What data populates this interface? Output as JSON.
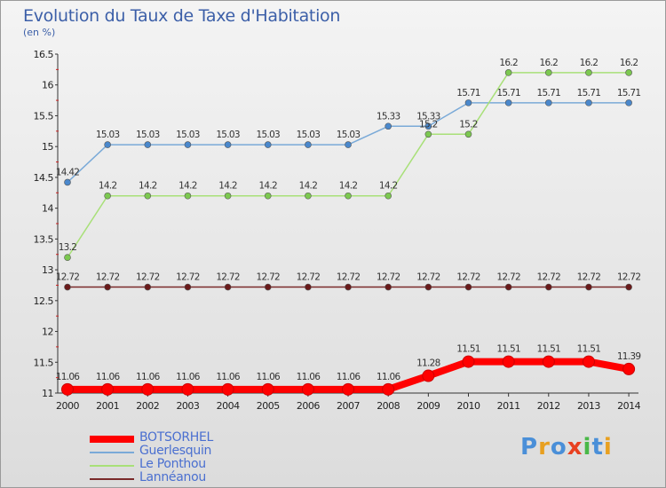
{
  "title": "Evolution du Taux de Taxe d'Habitation",
  "subtitle": "(en %)",
  "logo": {
    "text": "Proxiti",
    "letters": [
      "P",
      "r",
      "o",
      "x",
      "i",
      "t",
      "i"
    ],
    "colors": [
      "#4a8fd8",
      "#e8a020",
      "#4a8fd8",
      "#e84020",
      "#4ab848",
      "#4a8fd8",
      "#e8a020"
    ]
  },
  "chart_data": {
    "type": "line",
    "title": "Evolution du Taux de Taxe d'Habitation",
    "ylabel": "(en %)",
    "xlabel": "",
    "categories": [
      "2000",
      "2001",
      "2002",
      "2003",
      "2004",
      "2005",
      "2006",
      "2007",
      "2008",
      "2009",
      "2010",
      "2011",
      "2012",
      "2013",
      "2014"
    ],
    "ylim": [
      11,
      16.5
    ],
    "yticks": [
      "11",
      "11.5",
      "12",
      "12.5",
      "13",
      "13.5",
      "14",
      "14.5",
      "15",
      "15.5",
      "16",
      "16.5"
    ],
    "grid": false,
    "legend_position": "bottom-left",
    "series": [
      {
        "name": "BOTSORHEL",
        "color": "#ff0000",
        "marker": "#ff0000",
        "values": [
          11.06,
          11.06,
          11.06,
          11.06,
          11.06,
          11.06,
          11.06,
          11.06,
          11.06,
          11.28,
          11.51,
          11.51,
          11.51,
          11.51,
          11.39
        ],
        "labels": [
          "11.06",
          "11.06",
          "11.06",
          "11.06",
          "11.06",
          "11.06",
          "11.06",
          "11.06",
          "11.06",
          "11.28",
          "11.51",
          "11.51",
          "11.51",
          "11.51",
          "11.39"
        ]
      },
      {
        "name": "Guerlesquin",
        "color": "#7aaad8",
        "marker": "#4a88cc",
        "values": [
          14.42,
          15.03,
          15.03,
          15.03,
          15.03,
          15.03,
          15.03,
          15.03,
          15.33,
          15.33,
          15.71,
          15.71,
          15.71,
          15.71,
          15.71
        ],
        "labels": [
          "14.42",
          "15.03",
          "15.03",
          "15.03",
          "15.03",
          "15.03",
          "15.03",
          "15.03",
          "15.33",
          "15.33",
          "15.71",
          "15.71",
          "15.71",
          "15.71",
          "15.71"
        ]
      },
      {
        "name": "Le Ponthou",
        "color": "#a8e078",
        "marker": "#7cc850",
        "values": [
          13.2,
          14.2,
          14.2,
          14.2,
          14.2,
          14.2,
          14.2,
          14.2,
          14.2,
          15.2,
          15.2,
          16.2,
          16.2,
          16.2,
          16.2
        ],
        "labels": [
          "13.2",
          "14.2",
          "14.2",
          "14.2",
          "14.2",
          "14.2",
          "14.2",
          "14.2",
          "14.2",
          "15.2",
          "15.2",
          "16.2",
          "16.2",
          "16.2",
          "16.2"
        ]
      },
      {
        "name": "Lannéanou",
        "color": "#7a2a2a",
        "marker": "#6a1a1a",
        "values": [
          12.72,
          12.72,
          12.72,
          12.72,
          12.72,
          12.72,
          12.72,
          12.72,
          12.72,
          12.72,
          12.72,
          12.72,
          12.72,
          12.72,
          12.72
        ],
        "labels": [
          "12.72",
          "12.72",
          "12.72",
          "12.72",
          "12.72",
          "12.72",
          "12.72",
          "12.72",
          "12.72",
          "12.72",
          "12.72",
          "12.72",
          "12.72",
          "12.72",
          "12.72"
        ]
      }
    ]
  }
}
